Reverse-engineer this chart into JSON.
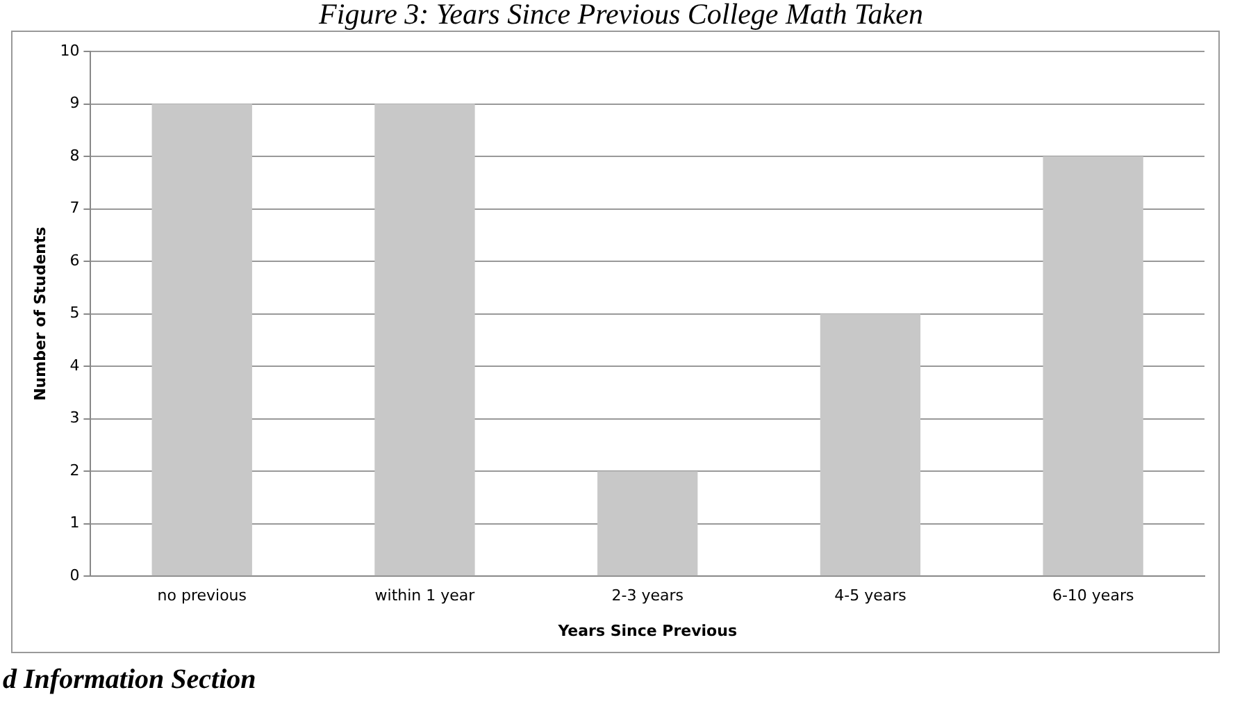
{
  "chart_data": {
    "type": "bar",
    "title": "Figure 3: Years Since Previous College Math Taken",
    "xlabel": "Years Since Previous",
    "ylabel": "Number of Students",
    "categories": [
      "no previous",
      "within 1 year",
      "2-3 years",
      "4-5 years",
      "6-10 years"
    ],
    "values": [
      9,
      9,
      2,
      5,
      8
    ],
    "color": "#c8c8c8",
    "ylim": [
      0,
      10
    ],
    "yticks": [
      0,
      1,
      2,
      3,
      4,
      5,
      6,
      7,
      8,
      9,
      10
    ],
    "grid": "y",
    "legend": false,
    "annotations": [
      "d Information Section"
    ]
  }
}
